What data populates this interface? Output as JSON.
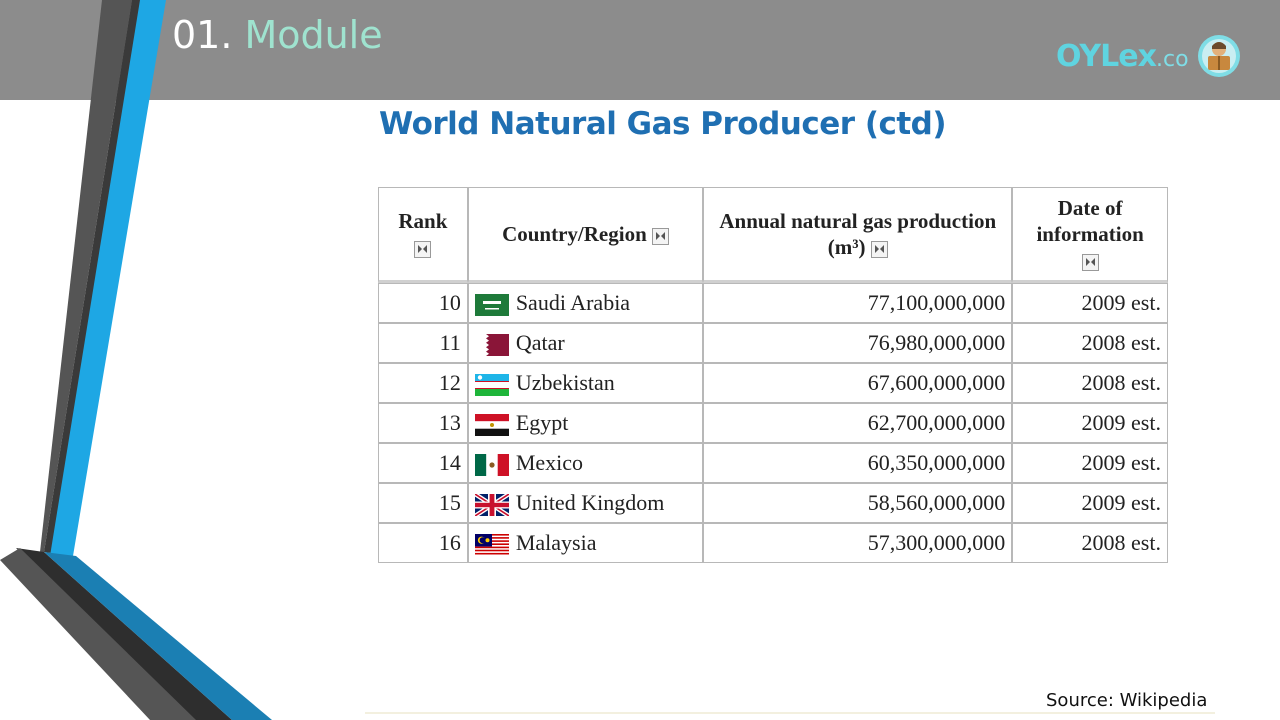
{
  "header": {
    "module_number": "01.",
    "module_label": "Module",
    "logo_main": "OYLex",
    "logo_domain": ".co",
    "logo_icon": "reader-avatar-icon"
  },
  "slide": {
    "title": "World Natural Gas Producer (ctd)"
  },
  "table": {
    "columns": [
      {
        "label": "Rank",
        "icon": "sort-icon"
      },
      {
        "label": "Country/Region",
        "icon": "sort-icon"
      },
      {
        "label": "Annual natural gas production (m³)",
        "icon": "sort-icon"
      },
      {
        "label": "Date of information",
        "icon": "sort-icon"
      }
    ],
    "rows": [
      {
        "rank": "10",
        "country": "Saudi Arabia",
        "flag": "saudi-arabia-flag-icon",
        "production": "77,100,000,000",
        "date": "2009 est."
      },
      {
        "rank": "11",
        "country": "Qatar",
        "flag": "qatar-flag-icon",
        "production": "76,980,000,000",
        "date": "2008 est."
      },
      {
        "rank": "12",
        "country": "Uzbekistan",
        "flag": "uzbekistan-flag-icon",
        "production": "67,600,000,000",
        "date": "2008 est."
      },
      {
        "rank": "13",
        "country": "Egypt",
        "flag": "egypt-flag-icon",
        "production": "62,700,000,000",
        "date": "2009 est."
      },
      {
        "rank": "14",
        "country": "Mexico",
        "flag": "mexico-flag-icon",
        "production": "60,350,000,000",
        "date": "2009 est."
      },
      {
        "rank": "15",
        "country": "United Kingdom",
        "flag": "united-kingdom-flag-icon",
        "production": "58,560,000,000",
        "date": "2009 est."
      },
      {
        "rank": "16",
        "country": "Malaysia",
        "flag": "malaysia-flag-icon",
        "production": "57,300,000,000",
        "date": "2008 est."
      }
    ]
  },
  "footer": {
    "source": "Source: Wikipedia"
  },
  "colors": {
    "header_bar": "#8c8c8c",
    "title": "#1f6fb2",
    "accent_blue": "#1aa3e0",
    "accent_dark": "#3c3c3c",
    "module_label": "#9fe3cf",
    "logo": "#5fd4e0"
  }
}
